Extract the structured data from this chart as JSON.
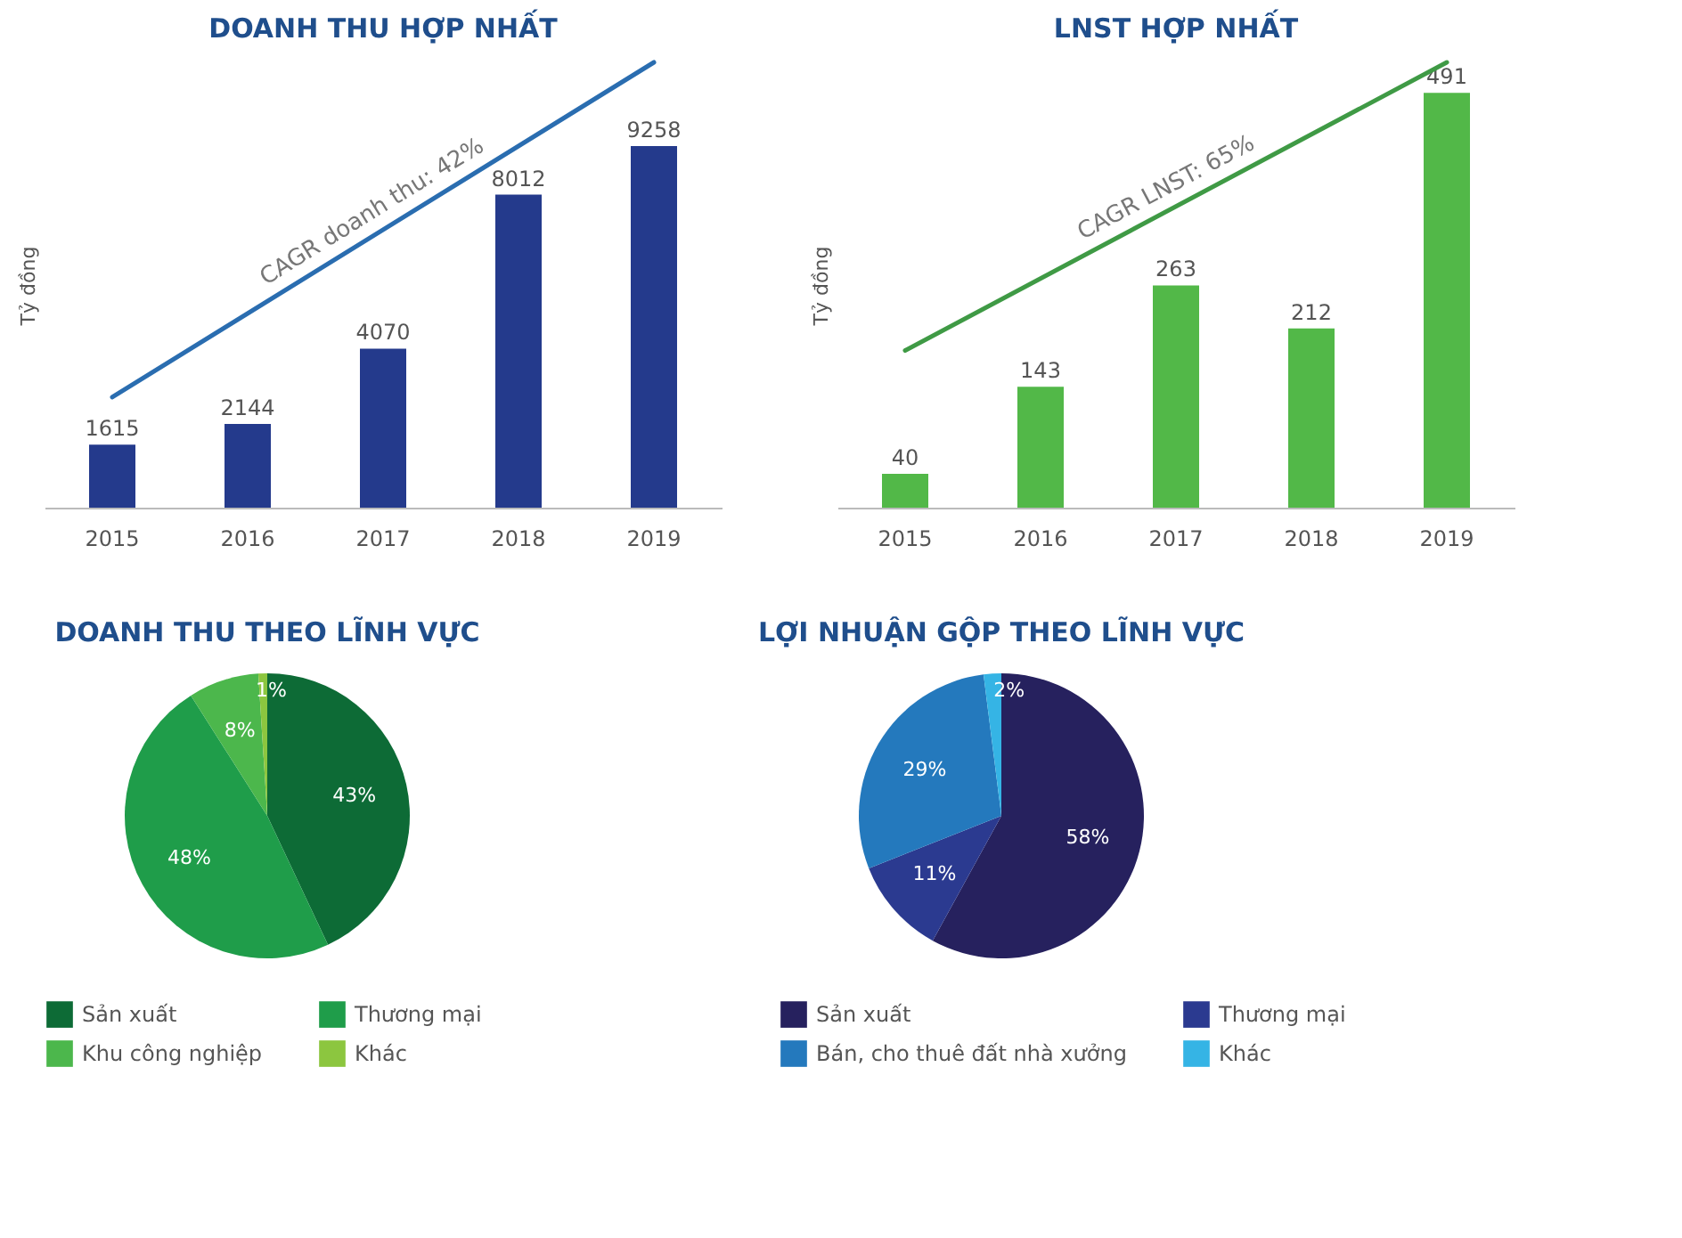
{
  "chart_data": [
    {
      "type": "bar",
      "title": "DOANH THU HỢP NHẤT",
      "ylabel": "Tỷ đồng",
      "categories": [
        "2015",
        "2016",
        "2017",
        "2018",
        "2019"
      ],
      "annotations": [
        "CAGR doanh thu: 42%"
      ],
      "series": [
        {
          "type": "bar",
          "color": "#243a8c",
          "values": [
            1615,
            2144,
            4070,
            8012,
            9258
          ],
          "value_labels": [
            "1615",
            "2144",
            "4070",
            "8012",
            "9258"
          ]
        },
        {
          "type": "line",
          "color": "#2a6db0",
          "values": [
            2830,
            null,
            null,
            null,
            11400
          ]
        }
      ]
    },
    {
      "type": "bar",
      "title": "LNST HỢP NHẤT",
      "ylabel": "Tỷ đồng",
      "categories": [
        "2015",
        "2016",
        "2017",
        "2018",
        "2019"
      ],
      "annotations": [
        "CAGR LNST: 65%"
      ],
      "series": [
        {
          "type": "bar",
          "color": "#52b848",
          "values": [
            40,
            143,
            263,
            212,
            491
          ],
          "value_labels": [
            "40",
            "143",
            "263",
            "212",
            "491"
          ]
        },
        {
          "type": "line",
          "color": "#3f9a45",
          "values": [
            186,
            null,
            null,
            null,
            527
          ]
        }
      ]
    },
    {
      "type": "pie",
      "title": "DOANH THU THEO LĨNH VỰC",
      "categories": [
        "Sản xuất",
        "Thương mại",
        "Khu công nghiệp",
        "Khác"
      ],
      "values": [
        43,
        48,
        8,
        1
      ],
      "value_labels": [
        "43%",
        "48%",
        "8%",
        "1%"
      ],
      "colors": [
        "#0d6b36",
        "#1f9d4a",
        "#4cb74c",
        "#8cc63f"
      ],
      "legend": "bottom"
    },
    {
      "type": "pie",
      "title": "LỢI NHUẬN GỘP THEO LĨNH VỰC",
      "categories": [
        "Sản xuất",
        "Thương mại",
        "Bán, cho thuê đất nhà xưởng",
        "Khác"
      ],
      "values": [
        58,
        11,
        29,
        2
      ],
      "value_labels": [
        "58%",
        "11%",
        "29%",
        "2%"
      ],
      "colors": [
        "#26215e",
        "#2b3a90",
        "#2479bd",
        "#35b4e5"
      ],
      "legend": "bottom"
    }
  ]
}
